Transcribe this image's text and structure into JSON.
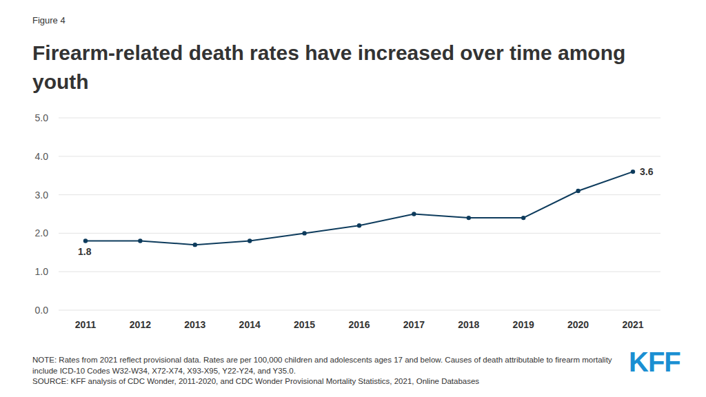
{
  "chart_data": {
    "type": "line",
    "figure_label": "Figure 4",
    "title": "Firearm-related death rates have increased over time among youth",
    "categories": [
      "2011",
      "2012",
      "2013",
      "2014",
      "2015",
      "2016",
      "2017",
      "2018",
      "2019",
      "2020",
      "2021"
    ],
    "values": [
      1.8,
      1.8,
      1.7,
      1.8,
      2.0,
      2.2,
      2.5,
      2.4,
      2.4,
      3.1,
      3.6
    ],
    "value_labels": [
      "1.8",
      null,
      null,
      null,
      null,
      null,
      null,
      null,
      null,
      null,
      "3.6"
    ],
    "data_labels": true,
    "color": "#0d3b5c",
    "marker": "circle",
    "line_style": "solid",
    "ylim": [
      0,
      5
    ],
    "yticks": [
      {
        "value": 0,
        "label": "0.0"
      },
      {
        "value": 1,
        "label": "1.0"
      },
      {
        "value": 2,
        "label": "2.0"
      },
      {
        "value": 3,
        "label": "3.0"
      },
      {
        "value": 4,
        "label": "4.0"
      },
      {
        "value": 5,
        "label": "5.0"
      }
    ],
    "grid": true,
    "note": "NOTE: Rates from 2021 reflect provisional data. Rates are per 100,000 children and adolescents ages 17 and below. Causes of death attributable to firearm mortality include ICD-10 Codes W32-W34, X72-X74, X93-X95, Y22-Y24, and Y35.0.",
    "source": "SOURCE: KFF analysis of CDC Wonder, 2011-2020, and CDC Wonder Provisional Mortality Statistics, 2021, Online Databases",
    "logo": "KFF"
  }
}
